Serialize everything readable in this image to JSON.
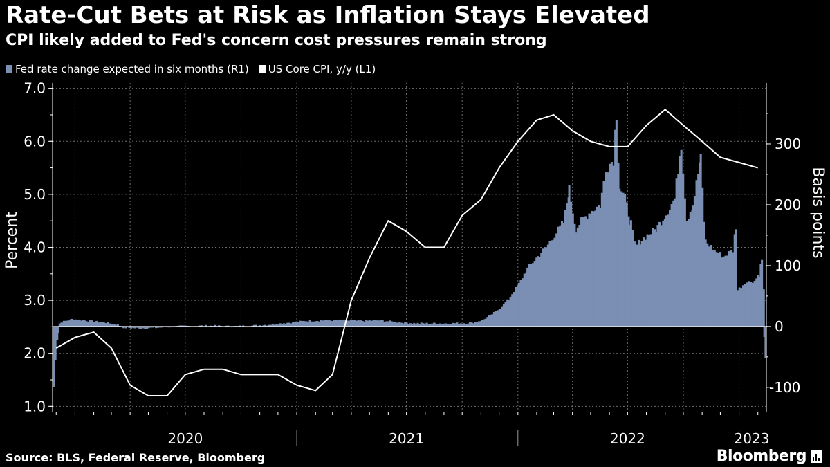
{
  "title": "Rate-Cut Bets at Risk as Inflation Stays Elevated",
  "subtitle": "CPI likely added to Fed's concern cost pressures remain strong",
  "source": "Source: BLS, Federal Reserve, Bloomberg",
  "brand": "Bloomberg",
  "colors": {
    "background": "#000000",
    "bars": "#7a8fb3",
    "line": "#ffffff",
    "grid": "#6e6e6e"
  },
  "chart_data": {
    "type": "bar+line",
    "legend": [
      {
        "name": "Fed rate change expected in six months (R1)",
        "color": "#7a8fb3"
      },
      {
        "name": "US Core CPI, y/y  (L1)",
        "color": "#ffffff"
      }
    ],
    "x_axis": {
      "type": "date",
      "range": [
        "2019-11-25",
        "2023-02-15"
      ],
      "year_labels": [
        {
          "label": "2020",
          "center": "2020-07-01"
        },
        {
          "label": "2021",
          "center": "2021-07-01"
        },
        {
          "label": "2022",
          "center": "2022-07-01"
        },
        {
          "label": "2023",
          "center": "2023-01-22"
        }
      ],
      "year_separators": [
        "2021-01-01",
        "2022-01-01",
        "2023-01-01"
      ]
    },
    "y_left": {
      "label": "Percent",
      "range": [
        0.9,
        7.1
      ],
      "ticks": [
        "1.0",
        "2.0",
        "3.0",
        "4.0",
        "5.0",
        "6.0",
        "7.0"
      ]
    },
    "y_right": {
      "label": "Basis points",
      "range": [
        -140,
        400
      ],
      "ticks": [
        "-100",
        "0",
        "100",
        "200",
        "300"
      ]
    },
    "series": [
      {
        "name": "US Core CPI, y/y  (L1)",
        "kind": "line",
        "axis": "left",
        "points": [
          [
            "2019-12-01",
            2.1
          ],
          [
            "2020-01-01",
            2.3
          ],
          [
            "2020-02-01",
            2.4
          ],
          [
            "2020-03-01",
            2.1
          ],
          [
            "2020-04-01",
            1.4
          ],
          [
            "2020-05-01",
            1.2
          ],
          [
            "2020-06-01",
            1.2
          ],
          [
            "2020-07-01",
            1.6
          ],
          [
            "2020-08-01",
            1.7
          ],
          [
            "2020-09-01",
            1.7
          ],
          [
            "2020-10-01",
            1.6
          ],
          [
            "2020-11-01",
            1.6
          ],
          [
            "2020-12-01",
            1.6
          ],
          [
            "2021-01-01",
            1.4
          ],
          [
            "2021-02-01",
            1.3
          ],
          [
            "2021-03-01",
            1.6
          ],
          [
            "2021-04-01",
            3.0
          ],
          [
            "2021-05-01",
            3.8
          ],
          [
            "2021-06-01",
            4.5
          ],
          [
            "2021-07-01",
            4.3
          ],
          [
            "2021-08-01",
            4.0
          ],
          [
            "2021-09-01",
            4.0
          ],
          [
            "2021-10-01",
            4.6
          ],
          [
            "2021-11-01",
            4.9
          ],
          [
            "2021-12-01",
            5.5
          ],
          [
            "2022-01-01",
            6.0
          ],
          [
            "2022-02-01",
            6.4
          ],
          [
            "2022-03-01",
            6.5
          ],
          [
            "2022-04-01",
            6.2
          ],
          [
            "2022-05-01",
            6.0
          ],
          [
            "2022-06-01",
            5.9
          ],
          [
            "2022-07-01",
            5.9
          ],
          [
            "2022-08-01",
            6.3
          ],
          [
            "2022-09-01",
            6.6
          ],
          [
            "2022-10-01",
            6.3
          ],
          [
            "2022-11-01",
            6.0
          ],
          [
            "2022-12-01",
            5.7
          ],
          [
            "2023-01-01",
            5.6
          ],
          [
            "2023-02-01",
            5.5
          ]
        ]
      },
      {
        "name": "Fed rate change expected in six months (R1)",
        "kind": "bar",
        "axis": "right",
        "points": [
          [
            "2019-11-25",
            -100
          ],
          [
            "2019-11-28",
            -55
          ],
          [
            "2019-12-02",
            -10
          ],
          [
            "2019-12-05",
            5
          ],
          [
            "2019-12-12",
            8
          ],
          [
            "2019-12-26",
            12
          ],
          [
            "2020-01-15",
            10
          ],
          [
            "2020-02-01",
            8
          ],
          [
            "2020-02-20",
            6
          ],
          [
            "2020-03-10",
            3
          ],
          [
            "2020-03-20",
            -2
          ],
          [
            "2020-04-15",
            -3
          ],
          [
            "2020-05-15",
            -2
          ],
          [
            "2020-06-15",
            0
          ],
          [
            "2020-07-15",
            1
          ],
          [
            "2020-08-15",
            1
          ],
          [
            "2020-09-15",
            0
          ],
          [
            "2020-10-15",
            1
          ],
          [
            "2020-11-15",
            3
          ],
          [
            "2020-12-15",
            6
          ],
          [
            "2021-01-15",
            9
          ],
          [
            "2021-02-15",
            10
          ],
          [
            "2021-03-15",
            10
          ],
          [
            "2021-04-15",
            9
          ],
          [
            "2021-05-15",
            10
          ],
          [
            "2021-06-15",
            7
          ],
          [
            "2021-07-15",
            5
          ],
          [
            "2021-08-15",
            5
          ],
          [
            "2021-09-15",
            5
          ],
          [
            "2021-10-15",
            6
          ],
          [
            "2021-11-01",
            10
          ],
          [
            "2021-11-15",
            18
          ],
          [
            "2021-12-01",
            30
          ],
          [
            "2021-12-15",
            45
          ],
          [
            "2022-01-01",
            70
          ],
          [
            "2022-01-15",
            95
          ],
          [
            "2022-02-01",
            115
          ],
          [
            "2022-02-15",
            130
          ],
          [
            "2022-03-01",
            150
          ],
          [
            "2022-03-15",
            170
          ],
          [
            "2022-03-25",
            225
          ],
          [
            "2022-04-05",
            160
          ],
          [
            "2022-04-15",
            175
          ],
          [
            "2022-05-01",
            190
          ],
          [
            "2022-05-15",
            200
          ],
          [
            "2022-05-25",
            260
          ],
          [
            "2022-06-06",
            275
          ],
          [
            "2022-06-11",
            350
          ],
          [
            "2022-06-16",
            230
          ],
          [
            "2022-06-25",
            210
          ],
          [
            "2022-07-05",
            170
          ],
          [
            "2022-07-12",
            130
          ],
          [
            "2022-07-20",
            140
          ],
          [
            "2022-08-01",
            150
          ],
          [
            "2022-08-15",
            160
          ],
          [
            "2022-09-01",
            185
          ],
          [
            "2022-09-15",
            210
          ],
          [
            "2022-09-26",
            300
          ],
          [
            "2022-10-05",
            175
          ],
          [
            "2022-10-15",
            200
          ],
          [
            "2022-10-28",
            275
          ],
          [
            "2022-11-05",
            140
          ],
          [
            "2022-11-20",
            125
          ],
          [
            "2022-12-05",
            115
          ],
          [
            "2022-12-20",
            125
          ],
          [
            "2022-12-25",
            165
          ],
          [
            "2022-12-28",
            60
          ],
          [
            "2023-01-10",
            72
          ],
          [
            "2023-01-25",
            75
          ],
          [
            "2023-02-01",
            85
          ],
          [
            "2023-02-06",
            110
          ],
          [
            "2023-02-09",
            60
          ],
          [
            "2023-02-10",
            -18
          ],
          [
            "2023-02-12",
            -52
          ]
        ]
      }
    ],
    "grid": true,
    "legend_position": "top-left"
  }
}
